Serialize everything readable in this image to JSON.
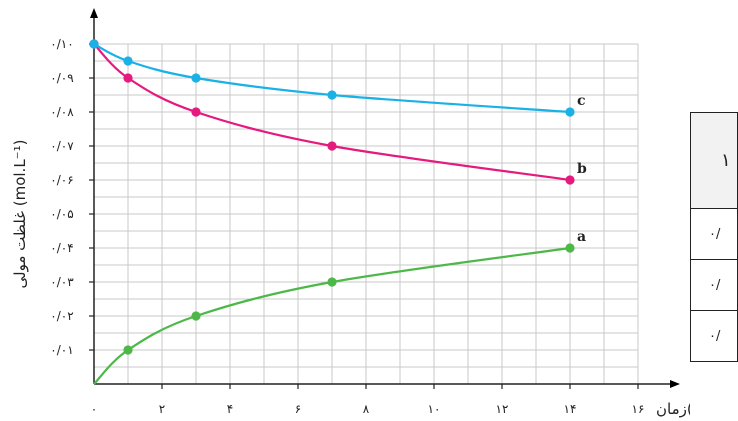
{
  "chart_data": {
    "type": "line",
    "xlabel": "زمان(h)",
    "ylabel": "غلظت مولی (mol.L⁻¹)",
    "xlim": [
      0,
      16
    ],
    "ylim": [
      0,
      0.1
    ],
    "x_ticks": [
      "۰",
      "۲",
      "۴",
      "۶",
      "۸",
      "۱۰",
      "۱۲",
      "۱۴",
      "۱۶"
    ],
    "y_ticks": [
      "۰/۰۱",
      "۰/۰۲",
      "۰/۰۳",
      "۰/۰۴",
      "۰/۰۵",
      "۰/۰۶",
      "۰/۰۷",
      "۰/۰۸",
      "۰/۰۹",
      "۰/۱۰"
    ],
    "grid": true,
    "series": [
      {
        "name": "a",
        "color": "#4db848",
        "x": [
          0,
          1,
          3,
          7,
          14
        ],
        "y": [
          0,
          0.01,
          0.02,
          0.03,
          0.04
        ],
        "markers": [
          [
            1,
            0.01
          ],
          [
            3,
            0.02
          ],
          [
            7,
            0.03
          ],
          [
            14,
            0.04
          ]
        ]
      },
      {
        "name": "b",
        "color": "#e5197e",
        "x": [
          0,
          1,
          3,
          7,
          14
        ],
        "y": [
          0.1,
          0.09,
          0.08,
          0.07,
          0.06
        ],
        "markers": [
          [
            0,
            0.1
          ],
          [
            1,
            0.09
          ],
          [
            3,
            0.08
          ],
          [
            7,
            0.07
          ],
          [
            14,
            0.06
          ]
        ]
      },
      {
        "name": "c",
        "color": "#1ab1e6",
        "x": [
          0,
          1,
          3,
          7,
          14
        ],
        "y": [
          0.1,
          0.095,
          0.09,
          0.085,
          0.08
        ],
        "markers": [
          [
            0,
            0.1
          ],
          [
            1,
            0.095
          ],
          [
            3,
            0.09
          ],
          [
            7,
            0.085
          ],
          [
            14,
            0.08
          ]
        ]
      }
    ]
  },
  "side_table": {
    "header": "۱",
    "rows": [
      "۰/",
      "۰/",
      "۰/"
    ]
  }
}
